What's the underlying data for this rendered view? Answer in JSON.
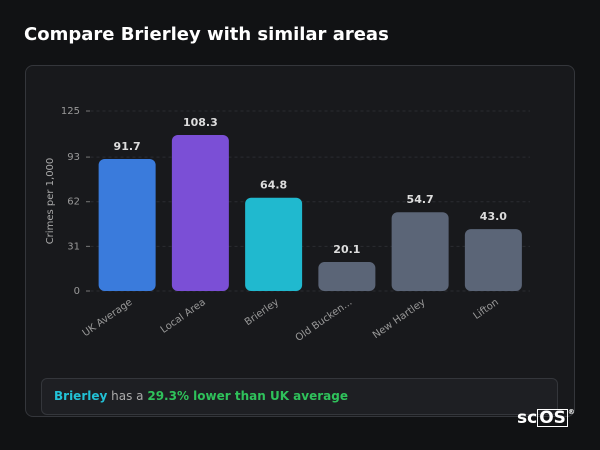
{
  "header": {
    "title": "Compare Brierley with similar areas"
  },
  "chart_data": {
    "type": "bar",
    "y_label": "Crimes per 1,000",
    "categories": [
      "UK Average",
      "Local Area",
      "Brierley",
      "Old Bucken...",
      "New Hartley",
      "Lifton"
    ],
    "values": [
      91.7,
      108.3,
      64.8,
      20.1,
      54.7,
      43.0
    ],
    "value_labels": [
      "91.7",
      "108.3",
      "64.8",
      "20.1",
      "54.7",
      "43.0"
    ],
    "colors": [
      "#3a7bdc",
      "#7b4fd6",
      "#20b9cf",
      "#5b6577",
      "#5b6577",
      "#5b6577"
    ],
    "ylim": [
      0,
      125
    ],
    "yticks": [
      0,
      31,
      62,
      93,
      125
    ],
    "grid": true
  },
  "info": {
    "place": "Brierley",
    "middle": "has a",
    "highlight": "29.3% lower than UK average"
  },
  "logo": {
    "prefix": "sc",
    "boxed": "OS",
    "mark": "®"
  }
}
